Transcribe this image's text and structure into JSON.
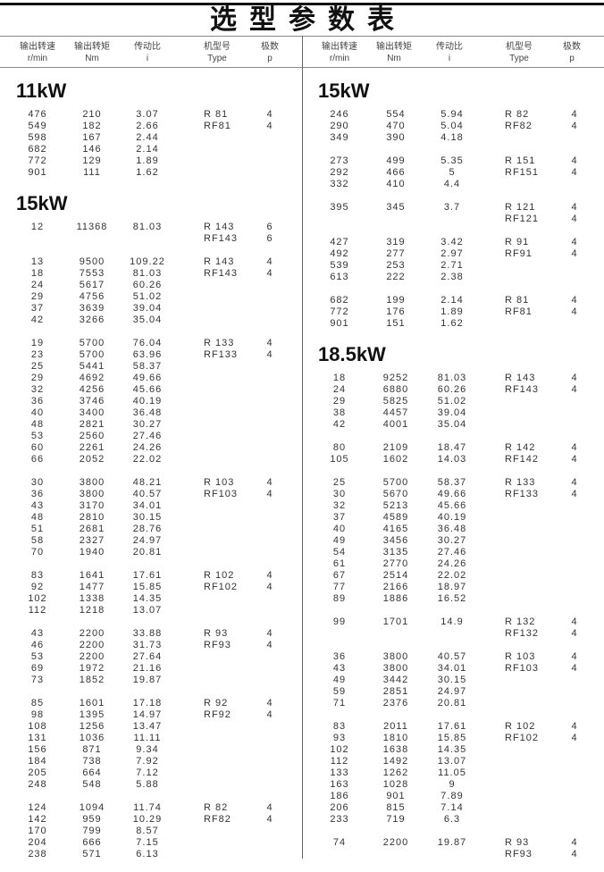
{
  "title": "选型参数表",
  "headers": [
    {
      "cn": "输出转速",
      "unit": "r/min"
    },
    {
      "cn": "输出转矩",
      "unit": "Nm"
    },
    {
      "cn": "传动比",
      "unit": "i"
    },
    {
      "cn": "机型号",
      "unit": "Type"
    },
    {
      "cn": "极数",
      "unit": "p"
    }
  ],
  "columns": [
    {
      "sections": [
        {
          "power": "11kW",
          "groups": [
            {
              "rows": [
                [
                  "476",
                  "210",
                  "3.07"
                ],
                [
                  "549",
                  "182",
                  "2.66"
                ],
                [
                  "598",
                  "167",
                  "2.44"
                ],
                [
                  "682",
                  "146",
                  "2.14"
                ],
                [
                  "772",
                  "129",
                  "1.89"
                ],
                [
                  "901",
                  "111",
                  "1.62"
                ]
              ],
              "types": [
                [
                  "R 81",
                  "4"
                ],
                [
                  "RF81",
                  "4"
                ]
              ]
            }
          ]
        },
        {
          "power": "15kW",
          "groups": [
            {
              "rows": [
                [
                  "12",
                  "11368",
                  "81.03"
                ]
              ],
              "types": [
                [
                  "R 143",
                  "6"
                ],
                [
                  "RF143",
                  "6"
                ]
              ]
            },
            {
              "rows": [
                [
                  "13",
                  "9500",
                  "109.22"
                ],
                [
                  "18",
                  "7553",
                  "81.03"
                ],
                [
                  "24",
                  "5617",
                  "60.26"
                ],
                [
                  "29",
                  "4756",
                  "51.02"
                ],
                [
                  "37",
                  "3639",
                  "39.04"
                ],
                [
                  "42",
                  "3266",
                  "35.04"
                ]
              ],
              "types": [
                [
                  "R 143",
                  "4"
                ],
                [
                  "RF143",
                  "4"
                ]
              ]
            },
            {
              "rows": [
                [
                  "19",
                  "5700",
                  "76.04"
                ],
                [
                  "23",
                  "5700",
                  "63.96"
                ],
                [
                  "25",
                  "5441",
                  "58.37"
                ],
                [
                  "29",
                  "4692",
                  "49.66"
                ],
                [
                  "32",
                  "4256",
                  "45.66"
                ],
                [
                  "36",
                  "3746",
                  "40.19"
                ],
                [
                  "40",
                  "3400",
                  "36.48"
                ],
                [
                  "48",
                  "2821",
                  "30.27"
                ],
                [
                  "53",
                  "2560",
                  "27.46"
                ],
                [
                  "60",
                  "2261",
                  "24.26"
                ],
                [
                  "66",
                  "2052",
                  "22.02"
                ]
              ],
              "types": [
                [
                  "R 133",
                  "4"
                ],
                [
                  "RF133",
                  "4"
                ]
              ]
            },
            {
              "rows": [
                [
                  "30",
                  "3800",
                  "48.21"
                ],
                [
                  "36",
                  "3800",
                  "40.57"
                ],
                [
                  "43",
                  "3170",
                  "34.01"
                ],
                [
                  "48",
                  "2810",
                  "30.15"
                ],
                [
                  "51",
                  "2681",
                  "28.76"
                ],
                [
                  "58",
                  "2327",
                  "24.97"
                ],
                [
                  "70",
                  "1940",
                  "20.81"
                ]
              ],
              "types": [
                [
                  "R 103",
                  "4"
                ],
                [
                  "RF103",
                  "4"
                ]
              ]
            },
            {
              "rows": [
                [
                  "83",
                  "1641",
                  "17.61"
                ],
                [
                  "92",
                  "1477",
                  "15.85"
                ],
                [
                  "102",
                  "1338",
                  "14.35"
                ],
                [
                  "112",
                  "1218",
                  "13.07"
                ]
              ],
              "types": [
                [
                  "R 102",
                  "4"
                ],
                [
                  "RF102",
                  "4"
                ]
              ]
            },
            {
              "rows": [
                [
                  "43",
                  "2200",
                  "33.88"
                ],
                [
                  "46",
                  "2200",
                  "31.73"
                ],
                [
                  "53",
                  "2200",
                  "27.64"
                ],
                [
                  "69",
                  "1972",
                  "21.16"
                ],
                [
                  "73",
                  "1852",
                  "19.87"
                ]
              ],
              "types": [
                [
                  "R 93",
                  "4"
                ],
                [
                  "RF93",
                  "4"
                ]
              ]
            },
            {
              "rows": [
                [
                  "85",
                  "1601",
                  "17.18"
                ],
                [
                  "98",
                  "1395",
                  "14.97"
                ],
                [
                  "108",
                  "1256",
                  "13.47"
                ],
                [
                  "131",
                  "1036",
                  "11.11"
                ],
                [
                  "156",
                  "871",
                  "9.34"
                ],
                [
                  "184",
                  "738",
                  "7.92"
                ],
                [
                  "205",
                  "664",
                  "7.12"
                ],
                [
                  "248",
                  "548",
                  "5.88"
                ]
              ],
              "types": [
                [
                  "R 92",
                  "4"
                ],
                [
                  "RF92",
                  "4"
                ]
              ]
            },
            {
              "rows": [
                [
                  "124",
                  "1094",
                  "11.74"
                ],
                [
                  "142",
                  "959",
                  "10.29"
                ],
                [
                  "170",
                  "799",
                  "8.57"
                ],
                [
                  "204",
                  "666",
                  "7.15"
                ],
                [
                  "238",
                  "571",
                  "6.13"
                ]
              ],
              "types": [
                [
                  "R 82",
                  "4"
                ],
                [
                  "RF82",
                  "4"
                ]
              ]
            }
          ]
        }
      ]
    },
    {
      "sections": [
        {
          "power": "15kW",
          "groups": [
            {
              "rows": [
                [
                  "246",
                  "554",
                  "5.94"
                ],
                [
                  "290",
                  "470",
                  "5.04"
                ],
                [
                  "349",
                  "390",
                  "4.18"
                ]
              ],
              "types": [
                [
                  "R 82",
                  "4"
                ],
                [
                  "RF82",
                  "4"
                ]
              ]
            },
            {
              "rows": [
                [
                  "273",
                  "499",
                  "5.35"
                ],
                [
                  "292",
                  "466",
                  "5"
                ],
                [
                  "332",
                  "410",
                  "4.4"
                ]
              ],
              "types": [
                [
                  "R 151",
                  "4"
                ],
                [
                  "RF151",
                  "4"
                ]
              ]
            },
            {
              "rows": [
                [
                  "395",
                  "345",
                  "3.7"
                ]
              ],
              "types": [
                [
                  "R 121",
                  "4"
                ],
                [
                  "RF121",
                  "4"
                ]
              ]
            },
            {
              "rows": [
                [
                  "427",
                  "319",
                  "3.42"
                ],
                [
                  "492",
                  "277",
                  "2.97"
                ],
                [
                  "539",
                  "253",
                  "2.71"
                ],
                [
                  "613",
                  "222",
                  "2.38"
                ]
              ],
              "types": [
                [
                  "R 91",
                  "4"
                ],
                [
                  "RF91",
                  "4"
                ]
              ]
            },
            {
              "rows": [
                [
                  "682",
                  "199",
                  "2.14"
                ],
                [
                  "772",
                  "176",
                  "1.89"
                ],
                [
                  "901",
                  "151",
                  "1.62"
                ]
              ],
              "types": [
                [
                  "R 81",
                  "4"
                ],
                [
                  "RF81",
                  "4"
                ]
              ]
            }
          ]
        },
        {
          "power": "18.5kW",
          "groups": [
            {
              "rows": [
                [
                  "18",
                  "9252",
                  "81.03"
                ],
                [
                  "24",
                  "6880",
                  "60.26"
                ],
                [
                  "29",
                  "5825",
                  "51.02"
                ],
                [
                  "38",
                  "4457",
                  "39.04"
                ],
                [
                  "42",
                  "4001",
                  "35.04"
                ]
              ],
              "types": [
                [
                  "R 143",
                  "4"
                ],
                [
                  "RF143",
                  "4"
                ]
              ]
            },
            {
              "rows": [
                [
                  "80",
                  "2109",
                  "18.47"
                ],
                [
                  "105",
                  "1602",
                  "14.03"
                ]
              ],
              "types": [
                [
                  "R 142",
                  "4"
                ],
                [
                  "RF142",
                  "4"
                ]
              ]
            },
            {
              "rows": [
                [
                  "25",
                  "5700",
                  "58.37"
                ],
                [
                  "30",
                  "5670",
                  "49.66"
                ],
                [
                  "32",
                  "5213",
                  "45.66"
                ],
                [
                  "37",
                  "4589",
                  "40.19"
                ],
                [
                  "40",
                  "4165",
                  "36.48"
                ],
                [
                  "49",
                  "3456",
                  "30.27"
                ],
                [
                  "54",
                  "3135",
                  "27.46"
                ],
                [
                  "61",
                  "2770",
                  "24.26"
                ],
                [
                  "67",
                  "2514",
                  "22.02"
                ],
                [
                  "77",
                  "2166",
                  "18.97"
                ],
                [
                  "89",
                  "1886",
                  "16.52"
                ]
              ],
              "types": [
                [
                  "R 133",
                  "4"
                ],
                [
                  "RF133",
                  "4"
                ]
              ]
            },
            {
              "rows": [
                [
                  "99",
                  "1701",
                  "14.9"
                ]
              ],
              "types": [
                [
                  "R 132",
                  "4"
                ],
                [
                  "RF132",
                  "4"
                ]
              ]
            },
            {
              "rows": [
                [
                  "36",
                  "3800",
                  "40.57"
                ],
                [
                  "43",
                  "3800",
                  "34.01"
                ],
                [
                  "49",
                  "3442",
                  "30.15"
                ],
                [
                  "59",
                  "2851",
                  "24.97"
                ],
                [
                  "71",
                  "2376",
                  "20.81"
                ]
              ],
              "types": [
                [
                  "R 103",
                  "4"
                ],
                [
                  "RF103",
                  "4"
                ]
              ]
            },
            {
              "rows": [
                [
                  "83",
                  "2011",
                  "17.61"
                ],
                [
                  "93",
                  "1810",
                  "15.85"
                ],
                [
                  "102",
                  "1638",
                  "14.35"
                ],
                [
                  "112",
                  "1492",
                  "13.07"
                ],
                [
                  "133",
                  "1262",
                  "11.05"
                ],
                [
                  "163",
                  "1028",
                  "9"
                ],
                [
                  "186",
                  "901",
                  "7.89"
                ],
                [
                  "206",
                  "815",
                  "7.14"
                ],
                [
                  "233",
                  "719",
                  "6.3"
                ]
              ],
              "types": [
                [
                  "R 102",
                  "4"
                ],
                [
                  "RF102",
                  "4"
                ]
              ]
            },
            {
              "rows": [
                [
                  "74",
                  "2200",
                  "19.87"
                ]
              ],
              "types": [
                [
                  "R 93",
                  "4"
                ],
                [
                  "RF93",
                  "4"
                ]
              ]
            }
          ]
        }
      ]
    }
  ]
}
